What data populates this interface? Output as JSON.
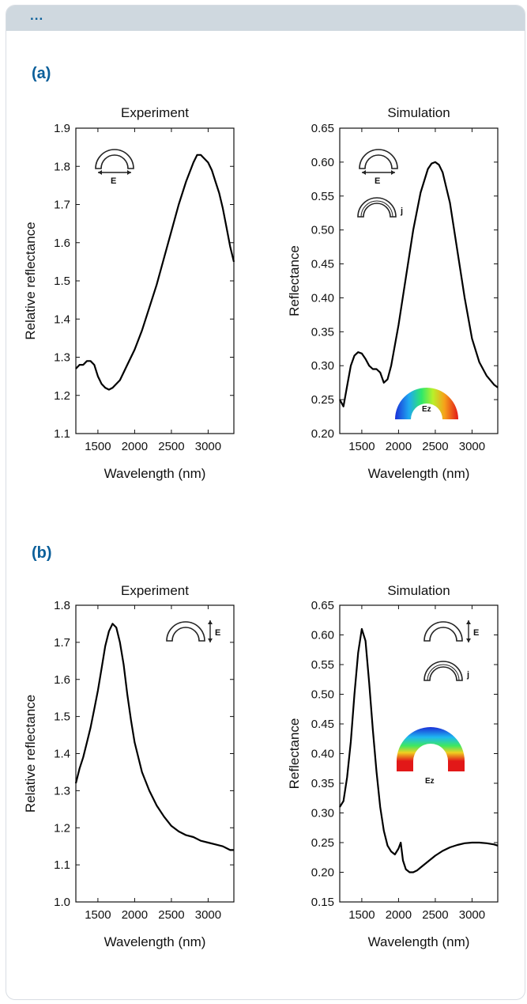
{
  "header": {
    "ellipsis": "..."
  },
  "panels": [
    {
      "label": "(a)"
    },
    {
      "label": "(b)"
    }
  ],
  "insets": {
    "e_label": "E",
    "j_label": "j",
    "ez_label": "Ez"
  },
  "chart_data": [
    {
      "type": "line",
      "title": "Experiment",
      "xlabel": "Wavelength (nm)",
      "ylabel": "Relative reflectance",
      "xlim": [
        1200,
        3350
      ],
      "ylim": [
        1.1,
        1.9
      ],
      "xticks": [
        1500,
        2000,
        2500,
        3000
      ],
      "yticks": [
        1.1,
        1.2,
        1.3,
        1.4,
        1.5,
        1.6,
        1.7,
        1.8,
        1.9
      ],
      "ytick_labels": [
        "1.1",
        "1.2",
        "1.3",
        "1.4",
        "1.5",
        "1.6",
        "1.7",
        "1.8",
        "1.9"
      ],
      "series": [
        {
          "x": [
            1200,
            1250,
            1300,
            1350,
            1400,
            1450,
            1500,
            1550,
            1600,
            1650,
            1700,
            1800,
            1900,
            2000,
            2100,
            2200,
            2300,
            2400,
            2500,
            2600,
            2700,
            2800,
            2850,
            2900,
            2950,
            3000,
            3050,
            3100,
            3150,
            3200,
            3250,
            3300,
            3350
          ],
          "y": [
            1.27,
            1.28,
            1.28,
            1.29,
            1.29,
            1.28,
            1.25,
            1.23,
            1.22,
            1.215,
            1.22,
            1.24,
            1.28,
            1.32,
            1.37,
            1.43,
            1.49,
            1.56,
            1.63,
            1.7,
            1.76,
            1.81,
            1.83,
            1.83,
            1.82,
            1.81,
            1.79,
            1.76,
            1.73,
            1.69,
            1.64,
            1.59,
            1.55
          ]
        }
      ]
    },
    {
      "type": "line",
      "title": "Simulation",
      "xlabel": "Wavelength (nm)",
      "ylabel": "Reflectance",
      "xlim": [
        1200,
        3350
      ],
      "ylim": [
        0.2,
        0.65
      ],
      "xticks": [
        1500,
        2000,
        2500,
        3000
      ],
      "yticks": [
        0.2,
        0.25,
        0.3,
        0.35,
        0.4,
        0.45,
        0.5,
        0.55,
        0.6,
        0.65
      ],
      "ytick_labels": [
        "0.20",
        "0.25",
        "0.30",
        "0.35",
        "0.40",
        "0.45",
        "0.50",
        "0.55",
        "0.60",
        "0.65"
      ],
      "series": [
        {
          "x": [
            1200,
            1250,
            1300,
            1350,
            1400,
            1450,
            1500,
            1550,
            1600,
            1650,
            1700,
            1750,
            1800,
            1850,
            1900,
            2000,
            2100,
            2200,
            2300,
            2400,
            2450,
            2500,
            2550,
            2600,
            2700,
            2800,
            2900,
            3000,
            3100,
            3200,
            3300,
            3350
          ],
          "y": [
            0.25,
            0.24,
            0.27,
            0.3,
            0.315,
            0.32,
            0.318,
            0.31,
            0.3,
            0.295,
            0.295,
            0.29,
            0.275,
            0.28,
            0.3,
            0.36,
            0.43,
            0.5,
            0.555,
            0.59,
            0.598,
            0.6,
            0.596,
            0.585,
            0.54,
            0.47,
            0.4,
            0.34,
            0.305,
            0.285,
            0.272,
            0.268
          ]
        }
      ]
    },
    {
      "type": "line",
      "title": "Experiment",
      "xlabel": "Wavelength (nm)",
      "ylabel": "Relative reflectance",
      "xlim": [
        1200,
        3350
      ],
      "ylim": [
        1.0,
        1.8
      ],
      "xticks": [
        1500,
        2000,
        2500,
        3000
      ],
      "yticks": [
        1.0,
        1.1,
        1.2,
        1.3,
        1.4,
        1.5,
        1.6,
        1.7,
        1.8
      ],
      "ytick_labels": [
        "1.0",
        "1.1",
        "1.2",
        "1.3",
        "1.4",
        "1.5",
        "1.6",
        "1.7",
        "1.8"
      ],
      "series": [
        {
          "x": [
            1200,
            1250,
            1300,
            1350,
            1400,
            1450,
            1500,
            1550,
            1600,
            1650,
            1700,
            1750,
            1800,
            1850,
            1900,
            1950,
            2000,
            2100,
            2200,
            2300,
            2400,
            2500,
            2600,
            2700,
            2800,
            2900,
            3000,
            3100,
            3200,
            3300,
            3350
          ],
          "y": [
            1.32,
            1.36,
            1.39,
            1.43,
            1.47,
            1.52,
            1.57,
            1.63,
            1.69,
            1.73,
            1.75,
            1.74,
            1.7,
            1.64,
            1.56,
            1.49,
            1.43,
            1.35,
            1.3,
            1.26,
            1.23,
            1.205,
            1.19,
            1.18,
            1.175,
            1.165,
            1.16,
            1.155,
            1.15,
            1.14,
            1.14
          ]
        }
      ]
    },
    {
      "type": "line",
      "title": "Simulation",
      "xlabel": "Wavelength (nm)",
      "ylabel": "Reflectance",
      "xlim": [
        1200,
        3350
      ],
      "ylim": [
        0.15,
        0.65
      ],
      "xticks": [
        1500,
        2000,
        2500,
        3000
      ],
      "yticks": [
        0.15,
        0.2,
        0.25,
        0.3,
        0.35,
        0.4,
        0.45,
        0.5,
        0.55,
        0.6,
        0.65
      ],
      "ytick_labels": [
        "0.15",
        "0.20",
        "0.25",
        "0.30",
        "0.35",
        "0.40",
        "0.45",
        "0.50",
        "0.55",
        "0.60",
        "0.65"
      ],
      "series": [
        {
          "x": [
            1200,
            1250,
            1300,
            1350,
            1400,
            1450,
            1500,
            1550,
            1600,
            1650,
            1700,
            1750,
            1800,
            1850,
            1900,
            1950,
            2000,
            2030,
            2060,
            2100,
            2150,
            2200,
            2250,
            2300,
            2400,
            2500,
            2600,
            2700,
            2800,
            2900,
            3000,
            3100,
            3200,
            3300,
            3350
          ],
          "y": [
            0.31,
            0.32,
            0.36,
            0.42,
            0.5,
            0.57,
            0.61,
            0.59,
            0.52,
            0.44,
            0.37,
            0.31,
            0.27,
            0.245,
            0.235,
            0.23,
            0.24,
            0.25,
            0.22,
            0.205,
            0.2,
            0.2,
            0.203,
            0.208,
            0.218,
            0.228,
            0.236,
            0.242,
            0.246,
            0.249,
            0.25,
            0.25,
            0.249,
            0.247,
            0.245
          ]
        }
      ]
    }
  ]
}
